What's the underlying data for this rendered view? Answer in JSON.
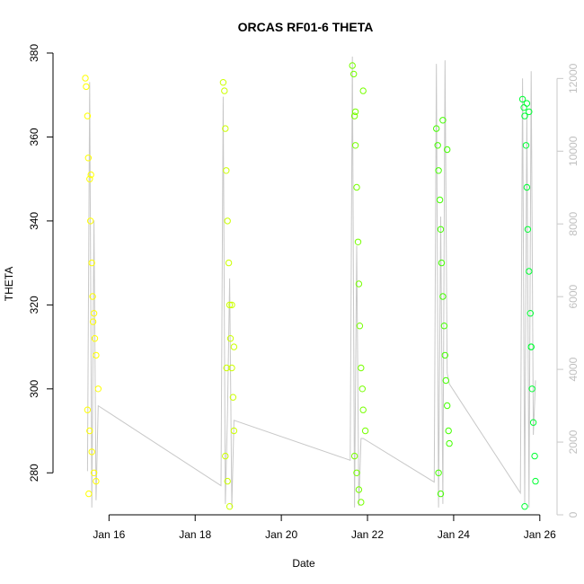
{
  "chart_data": {
    "type": "scatter",
    "title": "ORCAS RF01-6 THETA",
    "xlabel": "Date",
    "ylabel": "THETA",
    "x_ticks": [
      "Jan 16",
      "Jan 18",
      "Jan 20",
      "Jan 22",
      "Jan 24",
      "Jan 26"
    ],
    "x_tick_days": [
      16,
      18,
      20,
      22,
      24,
      26
    ],
    "y_ticks": [
      "280",
      "300",
      "320",
      "340",
      "360",
      "380"
    ],
    "y_right_ticks": [
      "0",
      "2000",
      "4000",
      "6000",
      "8000",
      "10000",
      "12000"
    ],
    "xlim": [
      14.7,
      26.4
    ],
    "ylim": [
      270,
      380
    ],
    "y_right_lim": [
      0,
      12700
    ],
    "grid": false,
    "series": [
      {
        "color": "#ffff00",
        "x": [
          15.45,
          15.47,
          15.5,
          15.52,
          15.55,
          15.57,
          15.6,
          15.62,
          15.65,
          15.67,
          15.7,
          15.75,
          15.5,
          15.55,
          15.6,
          15.65,
          15.7,
          15.53,
          15.58,
          15.63
        ],
        "y": [
          374,
          372,
          365,
          355,
          350,
          340,
          330,
          322,
          318,
          312,
          308,
          300,
          295,
          290,
          285,
          280,
          278,
          275,
          351,
          316
        ]
      },
      {
        "color": "#ccff00",
        "x": [
          18.65,
          18.68,
          18.7,
          18.72,
          18.75,
          18.78,
          18.8,
          18.82,
          18.85,
          18.88,
          18.9,
          18.7,
          18.75,
          18.8,
          18.85,
          18.9,
          18.73
        ],
        "y": [
          373,
          371,
          362,
          352,
          340,
          330,
          320,
          312,
          305,
          298,
          290,
          284,
          278,
          272,
          320,
          310,
          305
        ]
      },
      {
        "color": "#77ff00",
        "x": [
          21.65,
          21.68,
          21.7,
          21.72,
          21.75,
          21.78,
          21.8,
          21.82,
          21.85,
          21.88,
          21.9,
          21.95,
          21.7,
          21.75,
          21.8,
          21.85,
          21.9,
          21.72
        ],
        "y": [
          377,
          375,
          365,
          358,
          348,
          335,
          325,
          315,
          305,
          300,
          295,
          290,
          284,
          280,
          276,
          273,
          371,
          366
        ]
      },
      {
        "color": "#44ff00",
        "x": [
          23.6,
          23.63,
          23.65,
          23.68,
          23.7,
          23.72,
          23.75,
          23.78,
          23.8,
          23.82,
          23.85,
          23.88,
          23.9,
          23.65,
          23.7,
          23.75,
          23.85
        ],
        "y": [
          362,
          358,
          352,
          345,
          338,
          330,
          322,
          315,
          308,
          302,
          296,
          290,
          287,
          280,
          275,
          364,
          357
        ]
      },
      {
        "color": "#00ff33",
        "x": [
          25.6,
          25.63,
          25.65,
          25.68,
          25.7,
          25.72,
          25.75,
          25.78,
          25.8,
          25.82,
          25.85,
          25.88,
          25.9,
          25.65,
          25.7,
          25.75,
          25.8
        ],
        "y": [
          369,
          367,
          365,
          358,
          348,
          338,
          328,
          318,
          310,
          300,
          292,
          284,
          278,
          272,
          368,
          366,
          310
        ]
      }
    ],
    "secondary_series": {
      "color": "#c8c8c8",
      "axis": "right",
      "x": [
        15.5,
        15.55,
        15.6,
        15.65,
        15.7,
        15.75,
        18.6,
        18.65,
        18.7,
        18.75,
        18.8,
        18.85,
        18.9,
        21.6,
        21.65,
        21.7,
        21.75,
        21.8,
        21.85,
        21.9,
        23.55,
        23.6,
        23.65,
        23.7,
        23.75,
        23.8,
        23.85,
        23.9,
        25.55,
        25.6,
        25.65,
        25.7,
        25.75,
        25.8,
        25.85,
        25.9
      ],
      "y": [
        1200,
        11900,
        200,
        8100,
        400,
        3000,
        800,
        11500,
        300,
        2800,
        6500,
        200,
        2600,
        1500,
        12600,
        200,
        7400,
        250,
        2100,
        2100,
        900,
        12400,
        200,
        8200,
        300,
        12500,
        3900,
        3600,
        600,
        12000,
        300,
        11000,
        200,
        12200,
        2200,
        3700
      ]
    }
  }
}
